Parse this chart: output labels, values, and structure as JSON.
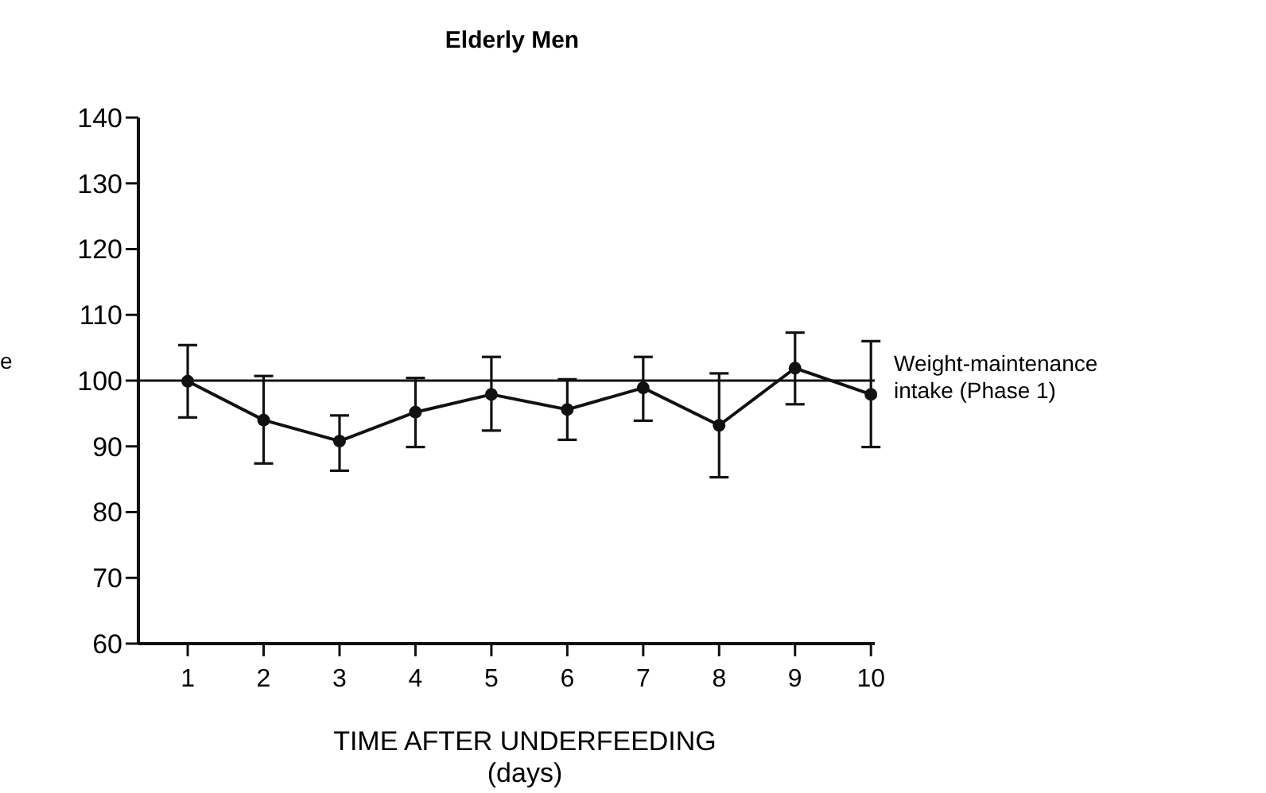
{
  "chart_data": {
    "type": "line",
    "title": "Elderly Men",
    "xlabel": "TIME AFTER UNDERFEEDING\n(days)",
    "ylabel": "e",
    "x": [
      1,
      2,
      3,
      4,
      5,
      6,
      7,
      8,
      9,
      10
    ],
    "series": [
      {
        "color": "#111111",
        "values": [
          99.9,
          94.0,
          90.8,
          95.2,
          97.9,
          95.6,
          98.9,
          93.2,
          101.9,
          97.9
        ],
        "errors": [
          [
            94.4,
            105.4
          ],
          [
            87.4,
            100.7
          ],
          [
            86.3,
            94.7
          ],
          [
            89.9,
            100.4
          ],
          [
            92.4,
            103.6
          ],
          [
            91.0,
            100.2
          ],
          [
            93.9,
            103.6
          ],
          [
            85.3,
            101.1
          ],
          [
            96.4,
            107.3
          ],
          [
            89.9,
            106.0
          ]
        ]
      }
    ],
    "xlim": [
      0.35,
      10.05
    ],
    "xticks": [
      1,
      2,
      3,
      4,
      5,
      6,
      7,
      8,
      9,
      10
    ],
    "ylim": [
      60,
      140
    ],
    "yticks": [
      60,
      70,
      80,
      90,
      100,
      110,
      120,
      130,
      140
    ],
    "ref_lines": [
      {
        "axis": "y",
        "value": 100,
        "label": "Weight-maintenance\nintake (Phase 1)",
        "color": "#111111"
      }
    ],
    "grid": false,
    "marker": "circle",
    "line_style": "solid"
  }
}
